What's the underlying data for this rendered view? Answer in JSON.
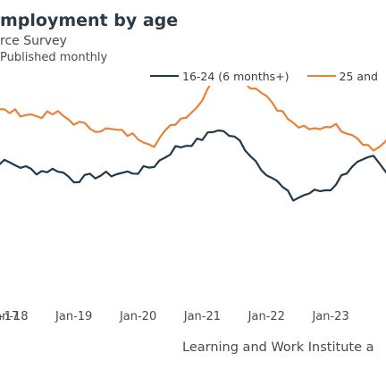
{
  "header": {
    "title": "mployment by age",
    "subtitle": "rce Survey",
    "note": "Published monthly"
  },
  "source": "Learning and Work Institute a",
  "colors": {
    "youth": "#22394a",
    "adult": "#e8823a"
  },
  "chart_data": {
    "type": "line",
    "title": "mployment by age",
    "xlabel": "",
    "ylabel": "",
    "x_ticks": [
      "-17",
      "Jan-18",
      "Jan-19",
      "Jan-20",
      "Jan-21",
      "Jan-22",
      "Jan-23",
      "Jar"
    ],
    "x_range": [
      "2017-05",
      "2023-12"
    ],
    "ylim": [
      0,
      100
    ],
    "grid": false,
    "legend_position": "top",
    "series": [
      {
        "name": "16-24 (6 months+)",
        "color": "#22394a",
        "points": [
          [
            "2017-05",
            63
          ],
          [
            "2017-09",
            65
          ],
          [
            "2018-01",
            64
          ],
          [
            "2018-06",
            60
          ],
          [
            "2018-10",
            61
          ],
          [
            "2019-01",
            56
          ],
          [
            "2019-05",
            58
          ],
          [
            "2019-09",
            59
          ],
          [
            "2020-01",
            60
          ],
          [
            "2020-04",
            63
          ],
          [
            "2020-08",
            71
          ],
          [
            "2020-12",
            74
          ],
          [
            "2021-04",
            80
          ],
          [
            "2021-08",
            74
          ],
          [
            "2021-12",
            62
          ],
          [
            "2022-03",
            55
          ],
          [
            "2022-06",
            47
          ],
          [
            "2022-09",
            50
          ],
          [
            "2023-01",
            52
          ],
          [
            "2023-05",
            63
          ],
          [
            "2023-09",
            66
          ],
          [
            "2023-12",
            57
          ]
        ]
      },
      {
        "name": "25 and",
        "color": "#e8823a",
        "points": [
          [
            "2017-05",
            90
          ],
          [
            "2017-09",
            89
          ],
          [
            "2018-01",
            88
          ],
          [
            "2018-06",
            86
          ],
          [
            "2018-10",
            87
          ],
          [
            "2019-01",
            83
          ],
          [
            "2019-05",
            80
          ],
          [
            "2019-09",
            79
          ],
          [
            "2020-01",
            76
          ],
          [
            "2020-04",
            73
          ],
          [
            "2020-08",
            83
          ],
          [
            "2020-12",
            90
          ],
          [
            "2021-04",
            108
          ],
          [
            "2021-08",
            102
          ],
          [
            "2021-12",
            98
          ],
          [
            "2022-03",
            90
          ],
          [
            "2022-06",
            82
          ],
          [
            "2022-09",
            79
          ],
          [
            "2023-01",
            82
          ],
          [
            "2023-05",
            78
          ],
          [
            "2023-09",
            70
          ],
          [
            "2023-12",
            75
          ]
        ]
      }
    ]
  }
}
